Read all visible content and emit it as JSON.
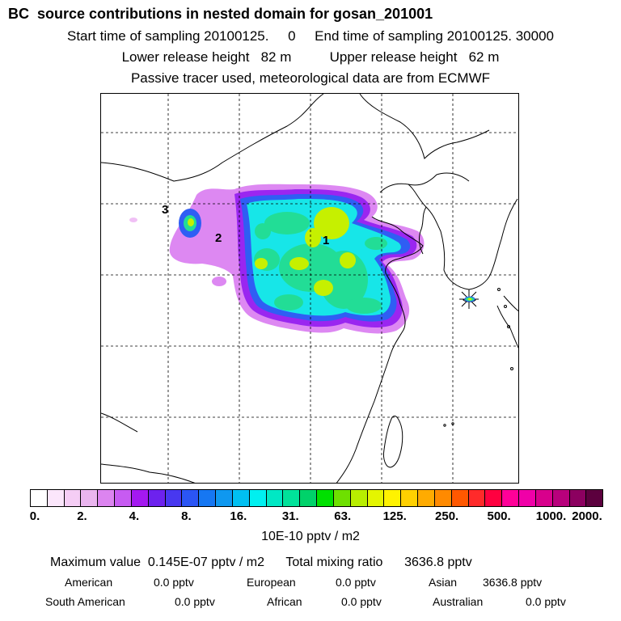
{
  "header": {
    "title": "BC  source contributions in nested domain for gosan_201001",
    "line2": "Start time of sampling 20100125.     0     End time of sampling 20100125. 30000",
    "line3": "Lower release height   82 m          Upper release height   62 m",
    "line4": "Passive tracer used, meteorological data are from ECMWF"
  },
  "map": {
    "region_labels": [
      "3",
      "2",
      "1"
    ],
    "receptor_marker": "receptor-star-icon"
  },
  "colorbar": {
    "colors": [
      "#ffffff",
      "#fbe6fb",
      "#f5cdf5",
      "#eab5ef",
      "#dc84f0",
      "#c75bf2",
      "#a419f0",
      "#6d22ee",
      "#4838f0",
      "#2b55f4",
      "#1677f2",
      "#0f98f0",
      "#00c0f2",
      "#00f0f0",
      "#00e8c4",
      "#00e29a",
      "#00d26a",
      "#00e000",
      "#6ee000",
      "#b8ee00",
      "#e4f500",
      "#fff200",
      "#ffd000",
      "#ffab00",
      "#ff8a00",
      "#ff5800",
      "#ff2a2a",
      "#ff0040",
      "#ff0098",
      "#f000a8",
      "#d8008c",
      "#b8007c",
      "#8c0060",
      "#5c003e"
    ],
    "ticks": [
      "0.",
      "2.",
      "4.",
      "8.",
      "16.",
      "31.",
      "63.",
      "125.",
      "250.",
      "500.",
      "1000.",
      "2000."
    ]
  },
  "units": "10E-10 pptv / m2",
  "summary": {
    "max_line": "Maximum value  0.145E-07 pptv / m2      Total mixing ratio      3636.8 pptv",
    "row1": [
      {
        "label": "American",
        "value": "0.0 pptv"
      },
      {
        "label": "European",
        "value": "0.0 pptv"
      },
      {
        "label": "Asian",
        "value": "3636.8 pptv"
      }
    ],
    "row2": [
      {
        "label": "South American",
        "value": "0.0 pptv"
      },
      {
        "label": "African",
        "value": "0.0 pptv"
      },
      {
        "label": "Australian",
        "value": "0.0 pptv"
      }
    ]
  }
}
